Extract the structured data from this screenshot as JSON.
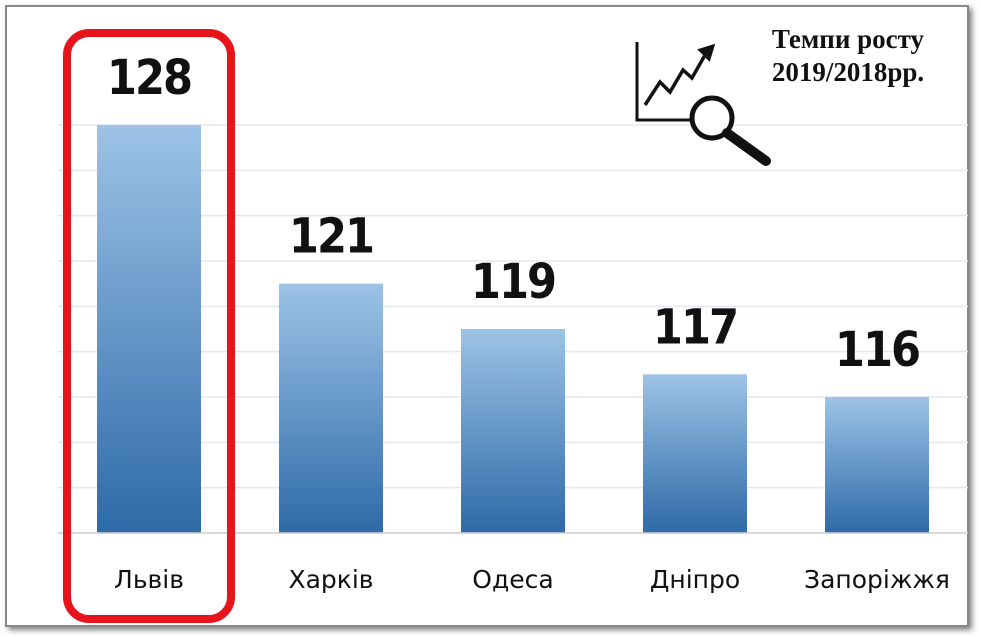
{
  "chart_data": {
    "type": "bar",
    "title": "Темпи росту",
    "subtitle": "2019/2018рр.",
    "categories": [
      "Львів",
      "Харків",
      "Одеса",
      "Дніпро",
      "Запоріжжя"
    ],
    "values": [
      128,
      121,
      119,
      117,
      116
    ],
    "color_top": "#9dc3e6",
    "color_bottom": "#2e6aa8",
    "ylim": [
      110,
      128
    ],
    "yticks": [
      110,
      112,
      114,
      116,
      118,
      120,
      122,
      124,
      126,
      128
    ],
    "grid": true,
    "highlight": 0,
    "highlight_color": "#e8141b"
  }
}
